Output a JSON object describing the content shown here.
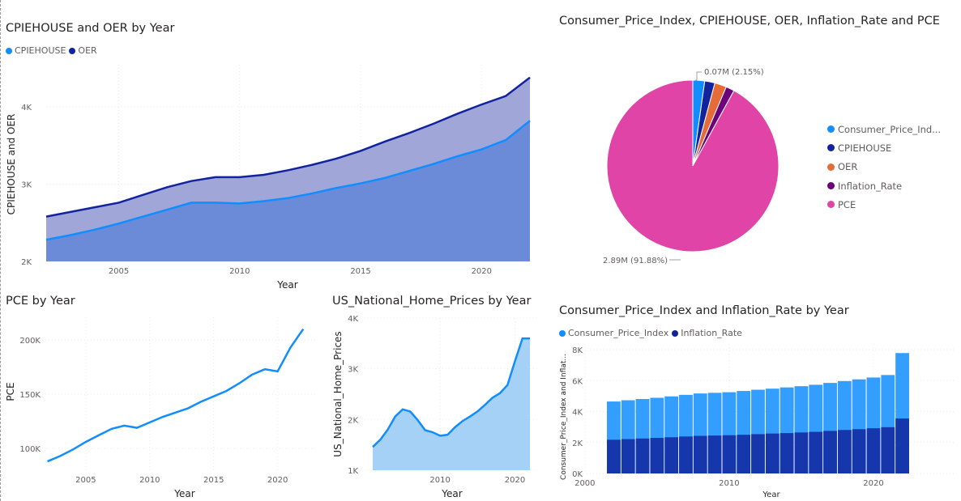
{
  "colors": {
    "cpi_blue": "#118DFF",
    "dark_navy": "#12239E",
    "orange": "#E66C37",
    "purple": "#6B007B",
    "pink": "#E044A7",
    "area_dark": "#6B8BD9",
    "area_light": "#A0A7D8",
    "area_pale": "#A5D1F7"
  },
  "charts": [
    {
      "id": "cpiehouse_oer",
      "title": "CPIEHOUSE and OER by Year",
      "legend": [
        {
          "name": "CPIEHOUSE",
          "color": "#118DFF"
        },
        {
          "name": "OER",
          "color": "#12239E"
        }
      ],
      "xlabel": "Year",
      "ylabel": "CPIEHOUSE and OER",
      "x_ticks": [
        "2005",
        "2010",
        "2015",
        "2020"
      ],
      "y_ticks": [
        "2K",
        "3K",
        "4K"
      ]
    },
    {
      "id": "pie",
      "title": "Consumer_Price_Index, CPIEHOUSE, OER, Inflation_Rate and PCE",
      "legend": [
        {
          "name": "Consumer_Price_Ind...",
          "color": "#118DFF"
        },
        {
          "name": "CPIEHOUSE",
          "color": "#12239E"
        },
        {
          "name": "OER",
          "color": "#E66C37"
        },
        {
          "name": "Inflation_Rate",
          "color": "#6B007B"
        },
        {
          "name": "PCE",
          "color": "#E044A7"
        }
      ],
      "labels": {
        "small": "0.07M (2.15%)",
        "big": "2.89M (91.88%)"
      }
    },
    {
      "id": "pce",
      "title": "PCE by Year",
      "xlabel": "Year",
      "ylabel": "PCE",
      "x_ticks": [
        "2005",
        "2010",
        "2015",
        "2020"
      ],
      "y_ticks": [
        "100K",
        "150K",
        "200K"
      ]
    },
    {
      "id": "home_prices",
      "title": "US_National_Home_Prices by Year",
      "xlabel": "Year",
      "ylabel": "US_National_Home_Prices",
      "x_ticks": [
        "2010",
        "2020"
      ],
      "y_ticks": [
        "1K",
        "2K",
        "3K",
        "4K"
      ]
    },
    {
      "id": "cpi_inflation",
      "title": "Consumer_Price_Index and Inflation_Rate by Year",
      "legend": [
        {
          "name": "Consumer_Price_Index",
          "color": "#118DFF"
        },
        {
          "name": "Inflation_Rate",
          "color": "#12239E"
        }
      ],
      "xlabel": "Year",
      "ylabel": "Consumer_Price_Index and Inflat...",
      "x_ticks": [
        "2000",
        "2010",
        "2020"
      ],
      "y_ticks": [
        "0K",
        "2K",
        "4K",
        "6K",
        "8K"
      ]
    }
  ],
  "chart_data": [
    {
      "type": "area",
      "title": "CPIEHOUSE and OER by Year",
      "xlabel": "Year",
      "ylabel": "CPIEHOUSE and OER",
      "x": [
        2002,
        2003,
        2004,
        2005,
        2006,
        2007,
        2008,
        2009,
        2010,
        2011,
        2012,
        2013,
        2014,
        2015,
        2016,
        2017,
        2018,
        2019,
        2020,
        2021,
        2022
      ],
      "series": [
        {
          "name": "CPIEHOUSE",
          "values": [
            2280,
            2340,
            2410,
            2490,
            2580,
            2670,
            2760,
            2760,
            2750,
            2780,
            2820,
            2880,
            2950,
            3010,
            3080,
            3170,
            3260,
            3360,
            3450,
            3570,
            3820
          ]
        },
        {
          "name": "OER",
          "values": [
            2580,
            2640,
            2700,
            2760,
            2860,
            2960,
            3040,
            3090,
            3090,
            3120,
            3180,
            3250,
            3330,
            3430,
            3550,
            3660,
            3780,
            3910,
            4030,
            4140,
            4380
          ]
        }
      ],
      "xlim": [
        2002,
        2022
      ],
      "ylim": [
        2000,
        4500
      ]
    },
    {
      "type": "pie",
      "title": "Consumer_Price_Index, CPIEHOUSE, OER, Inflation_Rate and PCE",
      "categories": [
        "Consumer_Price_Index",
        "CPIEHOUSE",
        "OER",
        "Inflation_Rate",
        "PCE"
      ],
      "values": [
        0.07,
        0.06,
        0.07,
        0.05,
        2.89
      ],
      "percentages": [
        2.15,
        1.92,
        2.23,
        1.82,
        91.88
      ]
    },
    {
      "type": "line",
      "title": "PCE by Year",
      "xlabel": "Year",
      "ylabel": "PCE",
      "x": [
        2002,
        2003,
        2004,
        2005,
        2006,
        2007,
        2008,
        2009,
        2010,
        2011,
        2012,
        2013,
        2014,
        2015,
        2016,
        2017,
        2018,
        2019,
        2020,
        2021,
        2022
      ],
      "series": [
        {
          "name": "PCE",
          "values": [
            88000,
            93000,
            99000,
            106000,
            112000,
            118000,
            121000,
            119000,
            124000,
            129000,
            133000,
            137000,
            143000,
            148000,
            153000,
            160000,
            168000,
            173000,
            171000,
            193000,
            210000
          ]
        }
      ],
      "xlim": [
        2002,
        2022
      ],
      "ylim": [
        80000,
        215000
      ]
    },
    {
      "type": "area",
      "title": "US_National_Home_Prices by Year",
      "xlabel": "Year",
      "ylabel": "US_National_Home_Prices",
      "x": [
        2001,
        2002,
        2003,
        2004,
        2005,
        2006,
        2007,
        2008,
        2009,
        2010,
        2011,
        2012,
        2013,
        2014,
        2015,
        2016,
        2017,
        2018,
        2019,
        2020,
        2021,
        2022
      ],
      "series": [
        {
          "name": "US_National_Home_Prices",
          "values": [
            1460,
            1600,
            1800,
            2060,
            2200,
            2160,
            1990,
            1790,
            1750,
            1680,
            1700,
            1850,
            1970,
            2060,
            2160,
            2290,
            2430,
            2520,
            2680,
            3150,
            3600,
            3600
          ]
        }
      ],
      "xlim": [
        2001,
        2022
      ],
      "ylim": [
        1000,
        4000
      ]
    },
    {
      "type": "bar",
      "title": "Consumer_Price_Index and Inflation_Rate by Year",
      "xlabel": "Year",
      "ylabel": "Consumer_Price_Index and Inflat...",
      "x": [
        2002,
        2003,
        2004,
        2005,
        2006,
        2007,
        2008,
        2009,
        2010,
        2011,
        2012,
        2013,
        2014,
        2015,
        2016,
        2017,
        2018,
        2019,
        2020,
        2021,
        2022
      ],
      "series": [
        {
          "name": "Consumer_Price_Index",
          "values": [
            4650,
            4730,
            4810,
            4890,
            4980,
            5080,
            5170,
            5210,
            5250,
            5330,
            5410,
            5480,
            5560,
            5640,
            5730,
            5850,
            5970,
            6080,
            6200,
            6360,
            7780
          ]
        },
        {
          "name": "Inflation_Rate",
          "values": [
            2180,
            2220,
            2260,
            2300,
            2340,
            2390,
            2430,
            2450,
            2470,
            2500,
            2540,
            2580,
            2610,
            2650,
            2690,
            2750,
            2810,
            2860,
            2920,
            2990,
            3550
          ]
        }
      ],
      "stacked": false,
      "xlim": [
        1999,
        2025
      ],
      "ylim": [
        0,
        8500
      ]
    }
  ]
}
